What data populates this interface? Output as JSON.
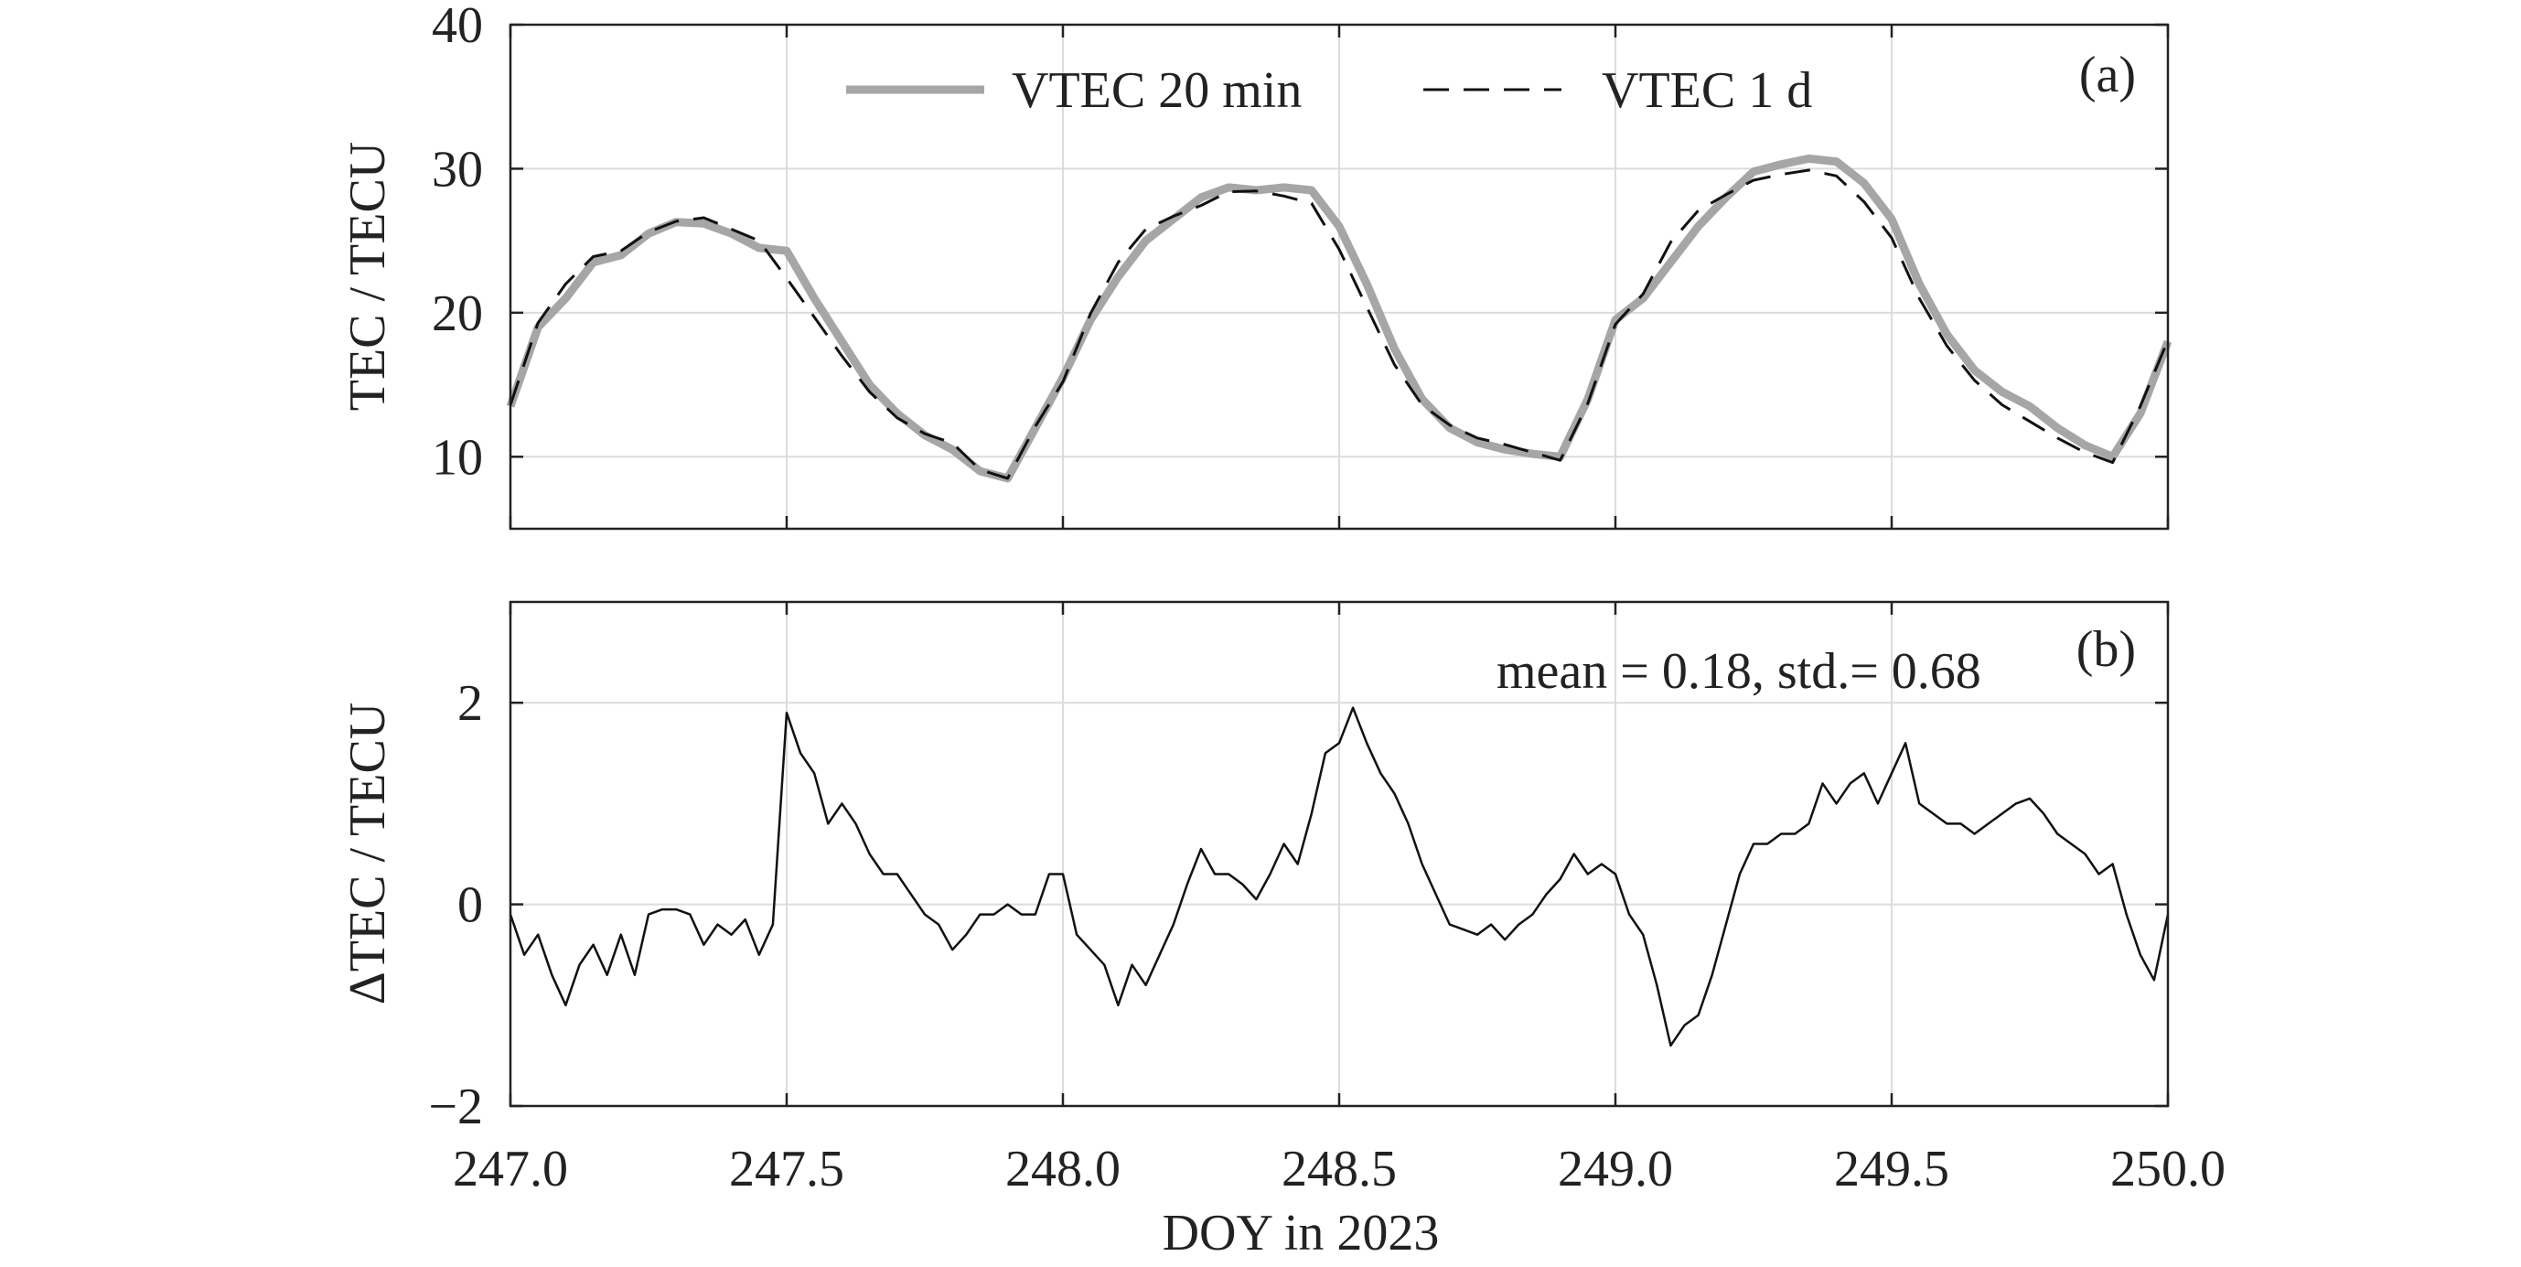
{
  "chart_data": [
    {
      "type": "line",
      "panel_label": "(a)",
      "ylabel": "TEC / TECU",
      "xlim": [
        247.0,
        250.0
      ],
      "ylim": [
        5,
        40
      ],
      "yticks": [
        "10",
        "20",
        "30",
        "40"
      ],
      "ytick_values": [
        10,
        20,
        30,
        40
      ],
      "grid": true,
      "legend_position": "top-center",
      "x_start": 247.0,
      "x_step": 0.05,
      "series": [
        {
          "name": "VTEC 20 min",
          "color": "#a6a6a6",
          "style": "solid-thick",
          "values": [
            13.5,
            19,
            21,
            23.5,
            24,
            25.5,
            26.3,
            26.2,
            25.5,
            24.5,
            24.3,
            21,
            18,
            15,
            13,
            11.5,
            10.5,
            9,
            8.5,
            12,
            15.5,
            19.5,
            22.5,
            25,
            26.5,
            28,
            28.7,
            28.5,
            28.7,
            28.5,
            26,
            22,
            17.5,
            14,
            12,
            11,
            10.5,
            10.2,
            10,
            14,
            19.5,
            21,
            23.5,
            26,
            28,
            29.8,
            30.3,
            30.7,
            30.5,
            29,
            26.5,
            22,
            18.5,
            16,
            14.5,
            13.5,
            12,
            10.8,
            10,
            13,
            18
          ]
        },
        {
          "name": "VTEC 1 d",
          "color": "#111111",
          "style": "dashed",
          "values": [
            13.6,
            19.3,
            22,
            23.9,
            24.3,
            25.6,
            26.35,
            26.6,
            25.8,
            25.0,
            22.4,
            19.7,
            17,
            14.5,
            12.7,
            11.6,
            10.95,
            9.1,
            8.5,
            12.1,
            15.2,
            19.95,
            23.5,
            25.8,
            26.7,
            27.45,
            28.4,
            28.45,
            28.1,
            27.6,
            24.4,
            20.4,
            16.4,
            13.6,
            12.2,
            11.3,
            10.85,
            10.3,
            9.75,
            13.7,
            19.2,
            21.3,
            24.9,
            27.1,
            28.2,
            29.2,
            29.6,
            29.9,
            29.5,
            27.7,
            25.2,
            21,
            17.7,
            15.3,
            13.6,
            12.45,
            11.3,
            10.3,
            9.6,
            13.5,
            18.1
          ]
        }
      ]
    },
    {
      "type": "line",
      "panel_label": "(b)",
      "ylabel": "ΔTEC / TECU",
      "xlabel": "DOY in 2023",
      "annotation": "mean = 0.18, std.= 0.68",
      "xlim": [
        247.0,
        250.0
      ],
      "ylim": [
        -2,
        3
      ],
      "yticks": [
        "−2",
        "0",
        "2"
      ],
      "ytick_values": [
        -2,
        0,
        2
      ],
      "xticks": [
        "247.0",
        "247.5",
        "248.0",
        "248.5",
        "249.0",
        "249.5",
        "250.0"
      ],
      "xtick_values": [
        247.0,
        247.5,
        248.0,
        248.5,
        249.0,
        249.5,
        250.0
      ],
      "grid": true,
      "x_start": 247.0,
      "x_step": 0.025,
      "series": [
        {
          "name": "ΔTEC",
          "color": "#111111",
          "style": "solid",
          "values": [
            -0.1,
            -0.5,
            -0.3,
            -0.7,
            -1.0,
            -0.6,
            -0.4,
            -0.7,
            -0.3,
            -0.7,
            -0.1,
            -0.05,
            -0.05,
            -0.1,
            -0.4,
            -0.2,
            -0.3,
            -0.15,
            -0.5,
            -0.2,
            1.9,
            1.5,
            1.3,
            0.8,
            1.0,
            0.8,
            0.5,
            0.3,
            0.3,
            0.1,
            -0.1,
            -0.2,
            -0.45,
            -0.3,
            -0.1,
            -0.1,
            0.0,
            -0.1,
            -0.1,
            0.3,
            0.3,
            -0.3,
            -0.45,
            -0.6,
            -1.0,
            -0.6,
            -0.8,
            -0.5,
            -0.2,
            0.2,
            0.55,
            0.3,
            0.3,
            0.2,
            0.05,
            0.3,
            0.6,
            0.4,
            0.9,
            1.5,
            1.6,
            1.95,
            1.6,
            1.3,
            1.1,
            0.8,
            0.4,
            0.1,
            -0.2,
            -0.25,
            -0.3,
            -0.2,
            -0.35,
            -0.2,
            -0.1,
            0.1,
            0.25,
            0.5,
            0.3,
            0.4,
            0.3,
            -0.1,
            -0.3,
            -0.8,
            -1.4,
            -1.2,
            -1.1,
            -0.7,
            -0.2,
            0.3,
            0.6,
            0.6,
            0.7,
            0.7,
            0.8,
            1.2,
            1.0,
            1.2,
            1.3,
            1.0,
            1.3,
            1.6,
            1.0,
            0.9,
            0.8,
            0.8,
            0.7,
            0.8,
            0.9,
            1.0,
            1.05,
            0.9,
            0.7,
            0.6,
            0.5,
            0.3,
            0.4,
            -0.1,
            -0.5,
            -0.75,
            -0.1
          ]
        }
      ]
    }
  ]
}
